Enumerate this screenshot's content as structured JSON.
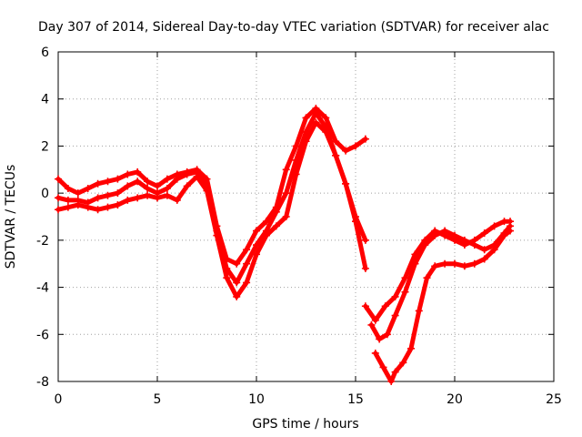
{
  "colors": {
    "series": "#ff0000",
    "grid": "#a0a0a0",
    "axis": "#000000",
    "background": "#ffffff"
  },
  "chart_data": {
    "type": "scatter",
    "title": "Day 307 of 2014, Sidereal Day-to-day VTEC variation (SDTVAR) for receiver alac",
    "xlabel": "GPS time / hours",
    "ylabel": "SDTVAR / TECUs",
    "xlim": [
      0,
      25
    ],
    "ylim": [
      -8,
      6
    ],
    "x_ticks": [
      "0",
      "5",
      "10",
      "15",
      "20",
      "25"
    ],
    "y_ticks": [
      "-8",
      "-6",
      "-4",
      "-2",
      "0",
      "2",
      "4",
      "6"
    ],
    "grid": true,
    "marker": "plus",
    "series": [
      {
        "x": [
          0,
          0.5,
          1,
          1.5,
          2,
          2.5,
          3,
          3.5,
          4,
          4.5,
          5,
          5.5,
          6,
          6.5,
          7,
          7.5,
          8,
          8.5,
          9,
          9.5,
          10,
          10.5,
          11,
          11.5,
          12,
          12.5,
          13,
          13.5,
          14,
          14.5,
          15,
          15.5
        ],
        "y": [
          0.6,
          0.2,
          0.0,
          0.2,
          0.4,
          0.5,
          0.6,
          0.8,
          0.9,
          0.5,
          0.3,
          0.6,
          0.8,
          0.9,
          1.0,
          0.6,
          -1.4,
          -2.8,
          -3.0,
          -2.4,
          -1.6,
          -1.2,
          -0.6,
          1.0,
          2.0,
          3.2,
          3.6,
          3.2,
          2.2,
          1.8,
          2.0,
          2.3
        ]
      },
      {
        "x": [
          0,
          0.5,
          1,
          1.5,
          2,
          2.5,
          3,
          3.5,
          4,
          4.5,
          5,
          5.5,
          6,
          6.5,
          7,
          7.5,
          8,
          8.5,
          9,
          9.5,
          10,
          10.5,
          11,
          11.5,
          12,
          12.5,
          13,
          13.5,
          14,
          14.5,
          15,
          15.5
        ],
        "y": [
          -0.2,
          -0.3,
          -0.3,
          -0.4,
          -0.2,
          -0.1,
          0.0,
          0.3,
          0.5,
          0.2,
          0.0,
          0.2,
          0.6,
          0.8,
          0.9,
          0.3,
          -1.6,
          -3.2,
          -3.8,
          -3.0,
          -2.2,
          -1.6,
          -0.8,
          0.0,
          1.4,
          2.6,
          3.4,
          2.8,
          1.6,
          0.4,
          -1.2,
          -3.2
        ]
      },
      {
        "x": [
          0,
          0.5,
          1,
          1.5,
          2,
          2.5,
          3,
          3.5,
          4,
          4.5,
          5,
          5.5,
          6,
          6.5,
          7,
          7.5,
          8,
          8.5,
          9,
          9.5,
          10,
          10.5,
          11,
          11.5,
          12,
          12.5,
          13,
          13.5,
          14,
          14.5,
          15,
          15.5
        ],
        "y": [
          -0.7,
          -0.6,
          -0.5,
          -0.6,
          -0.7,
          -0.6,
          -0.5,
          -0.3,
          -0.2,
          -0.1,
          -0.2,
          -0.1,
          -0.3,
          0.3,
          0.7,
          0.1,
          -1.8,
          -3.6,
          -4.4,
          -3.8,
          -2.6,
          -1.8,
          -1.4,
          -1.0,
          0.8,
          2.2,
          3.0,
          2.6,
          1.6,
          0.4,
          -1.0,
          -2.0
        ]
      },
      {
        "x": [
          15.5,
          16,
          16.5,
          17,
          17.5,
          18,
          18.5,
          19,
          19.5,
          20,
          20.5,
          21,
          21.5,
          22,
          22.5,
          22.8
        ],
        "y": [
          -4.8,
          -5.4,
          -4.8,
          -4.4,
          -3.6,
          -2.6,
          -2.0,
          -1.6,
          -1.8,
          -2.0,
          -2.2,
          -2.0,
          -1.7,
          -1.4,
          -1.2,
          -1.2
        ]
      },
      {
        "x": [
          15.8,
          16.2,
          16.6,
          17,
          17.5,
          18,
          18.5,
          19,
          19.5,
          20,
          20.5,
          21,
          21.5,
          22,
          22.5,
          22.8
        ],
        "y": [
          -5.6,
          -6.2,
          -6.0,
          -5.2,
          -4.2,
          -3.0,
          -2.2,
          -1.8,
          -1.6,
          -1.8,
          -2.0,
          -2.2,
          -2.4,
          -2.2,
          -1.7,
          -1.4
        ]
      },
      {
        "x": [
          16,
          16.4,
          16.8,
          17,
          17.4,
          17.8,
          18.2,
          18.6,
          19,
          19.5,
          20,
          20.5,
          21,
          21.5,
          22,
          22.5,
          22.8
        ],
        "y": [
          -6.8,
          -7.4,
          -8.0,
          -7.6,
          -7.2,
          -6.6,
          -5.0,
          -3.6,
          -3.1,
          -3.0,
          -3.0,
          -3.1,
          -3.0,
          -2.8,
          -2.4,
          -1.8,
          -1.6
        ]
      }
    ]
  }
}
